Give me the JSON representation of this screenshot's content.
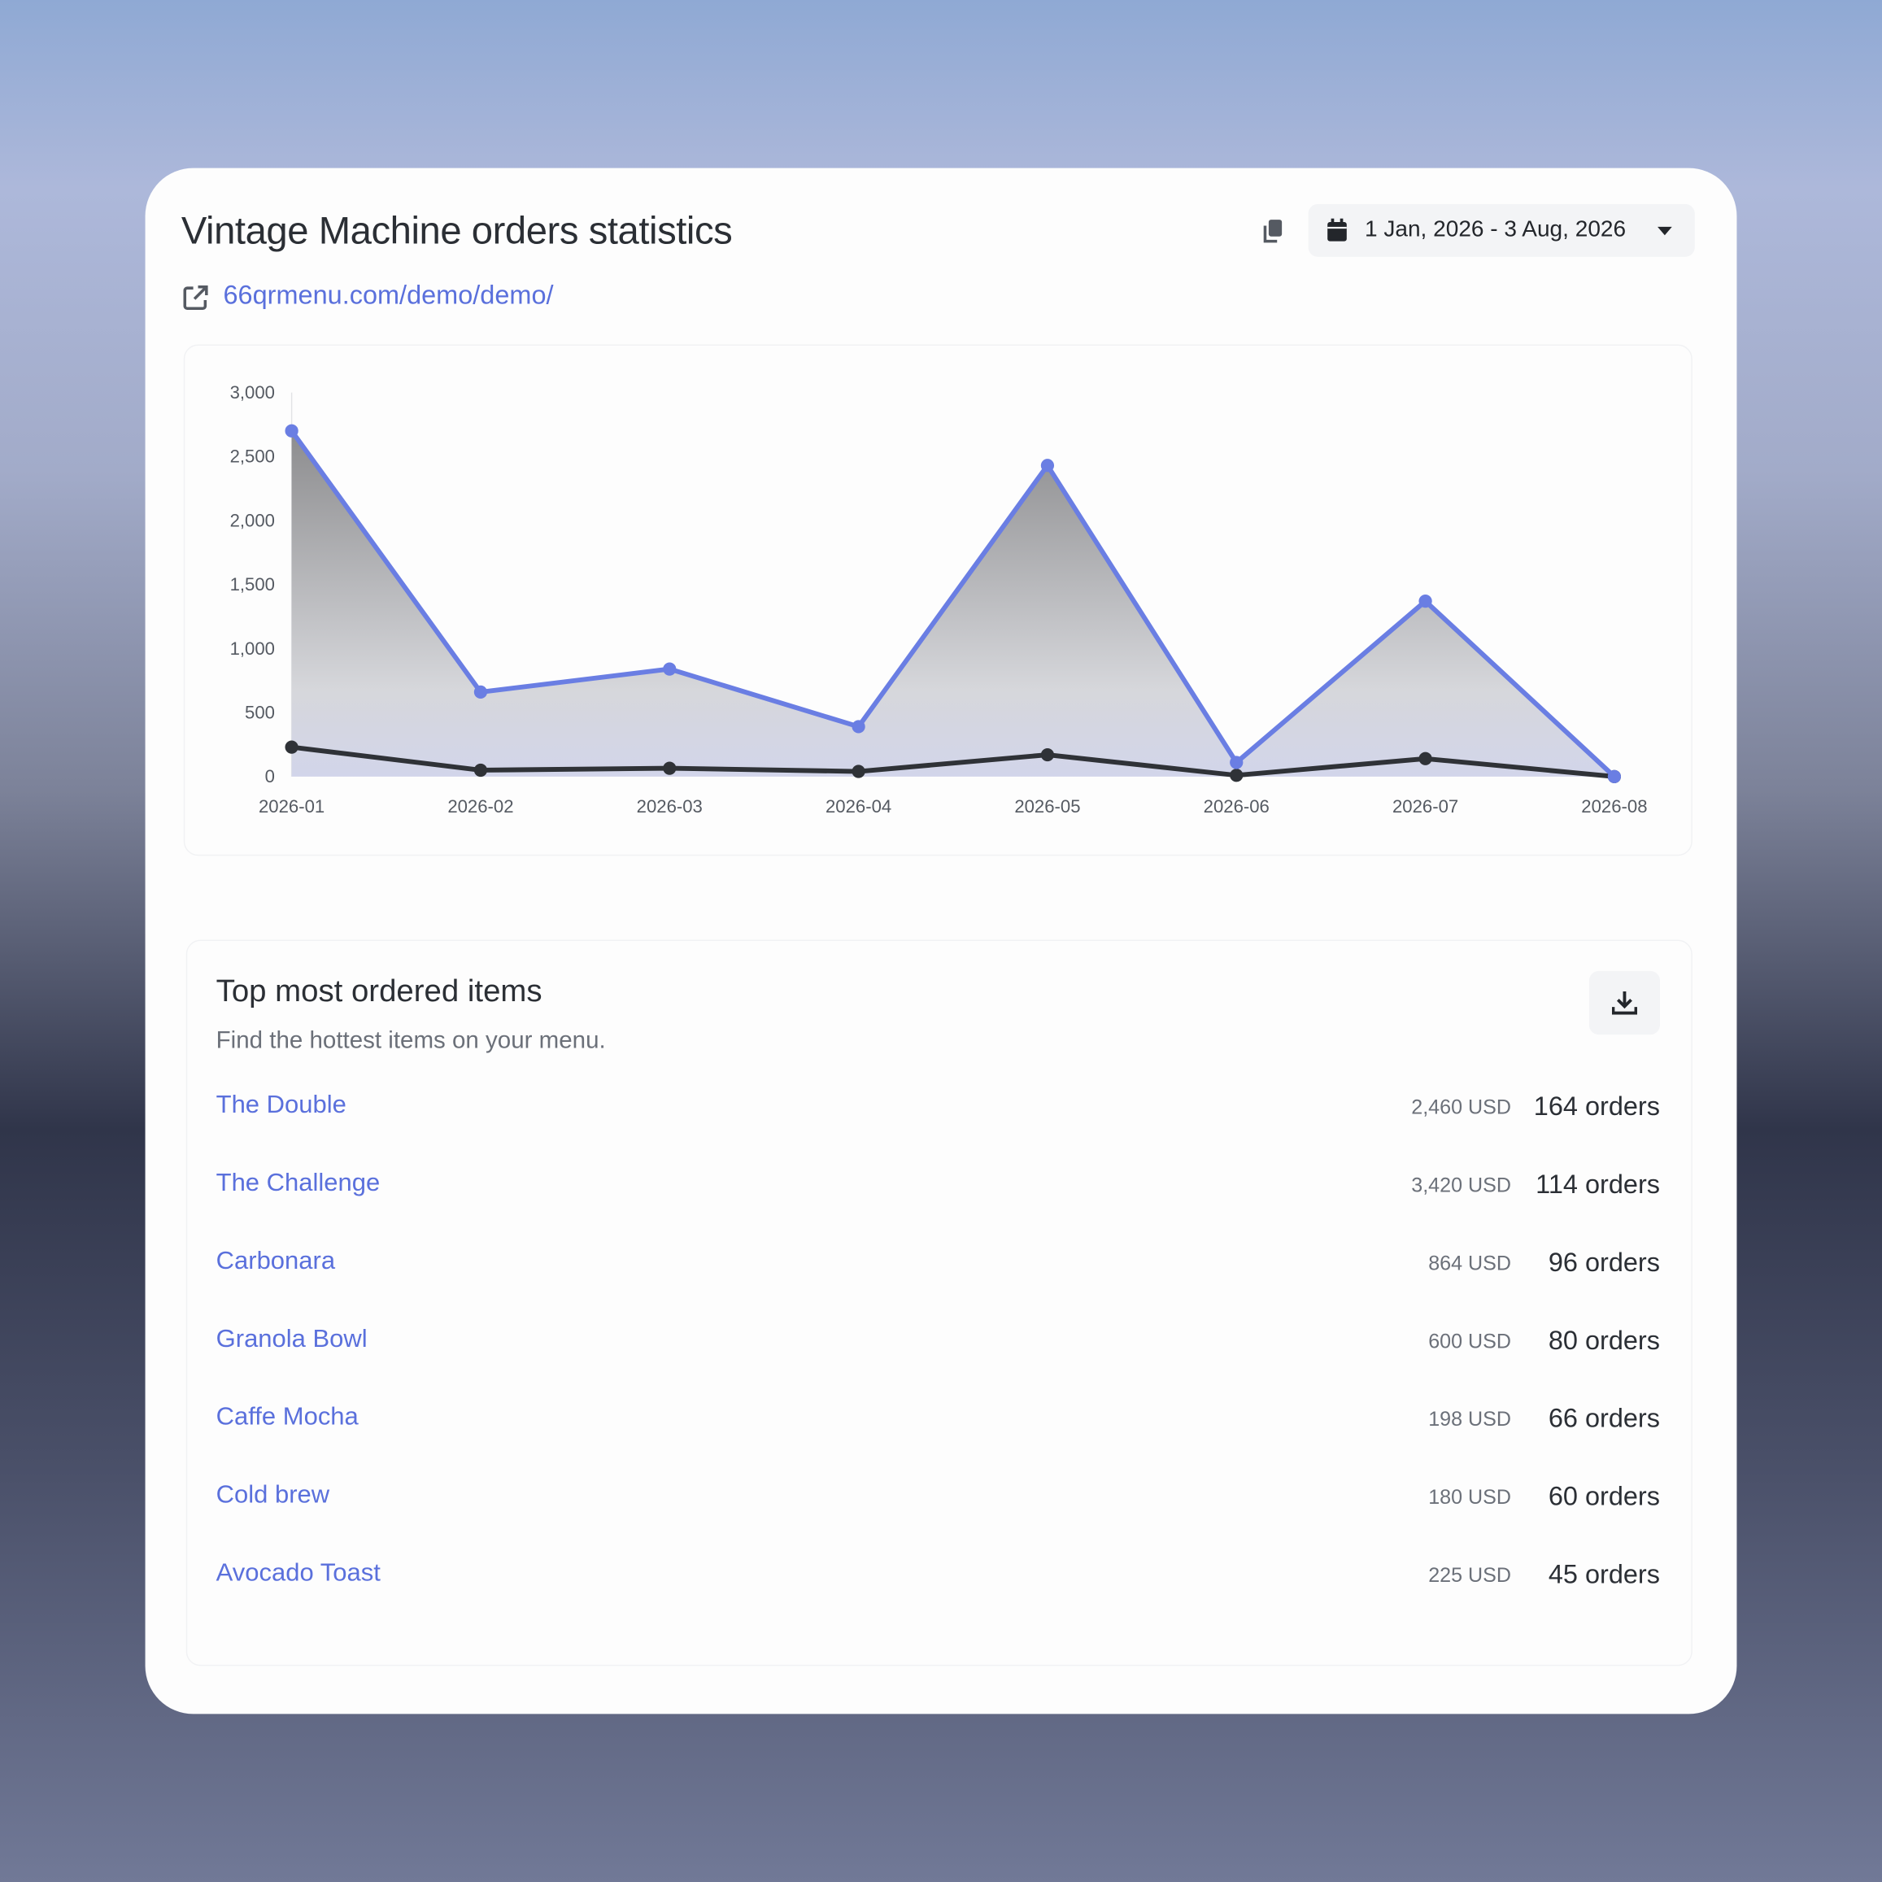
{
  "header": {
    "title": "Vintage Machine orders statistics",
    "link": "66qrmenu.com/demo/demo/",
    "date_range": "1 Jan, 2026 - 3 Aug, 2026"
  },
  "chart_data": {
    "type": "line",
    "categories": [
      "2026-01",
      "2026-02",
      "2026-03",
      "2026-04",
      "2026-05",
      "2026-06",
      "2026-07",
      "2026-08"
    ],
    "series": [
      {
        "color": "#6a7ee3",
        "values": [
          2700,
          660,
          840,
          390,
          2430,
          110,
          1370,
          0
        ]
      },
      {
        "color": "#2f3237",
        "values": [
          230,
          50,
          65,
          40,
          170,
          10,
          140,
          0
        ]
      }
    ],
    "ylim": [
      0,
      3000
    ],
    "yticks": [
      0,
      500,
      {
        "value": 1000,
        "label": "1,000"
      },
      {
        "value": 1500,
        "label": "1,500"
      },
      {
        "value": 2000,
        "label": "2,000"
      },
      {
        "value": 2500,
        "label": "2,500"
      },
      {
        "value": 3000,
        "label": "3,000"
      }
    ],
    "grid": false
  },
  "top_items": {
    "title": "Top most ordered items",
    "subtitle": "Find the hottest items on your menu.",
    "rows": [
      [
        "The Double",
        "2,460 USD",
        "164 orders"
      ],
      [
        "The Challenge",
        "3,420 USD",
        "114 orders"
      ],
      [
        "Carbonara",
        "864 USD",
        "96 orders"
      ],
      [
        "Granola Bowl",
        "600 USD",
        "80 orders"
      ],
      [
        "Caffe Mocha",
        "198 USD",
        "66 orders"
      ],
      [
        "Cold brew",
        "180 USD",
        "60 orders"
      ],
      [
        "Avocado Toast",
        "225 USD",
        "45 orders"
      ]
    ]
  }
}
